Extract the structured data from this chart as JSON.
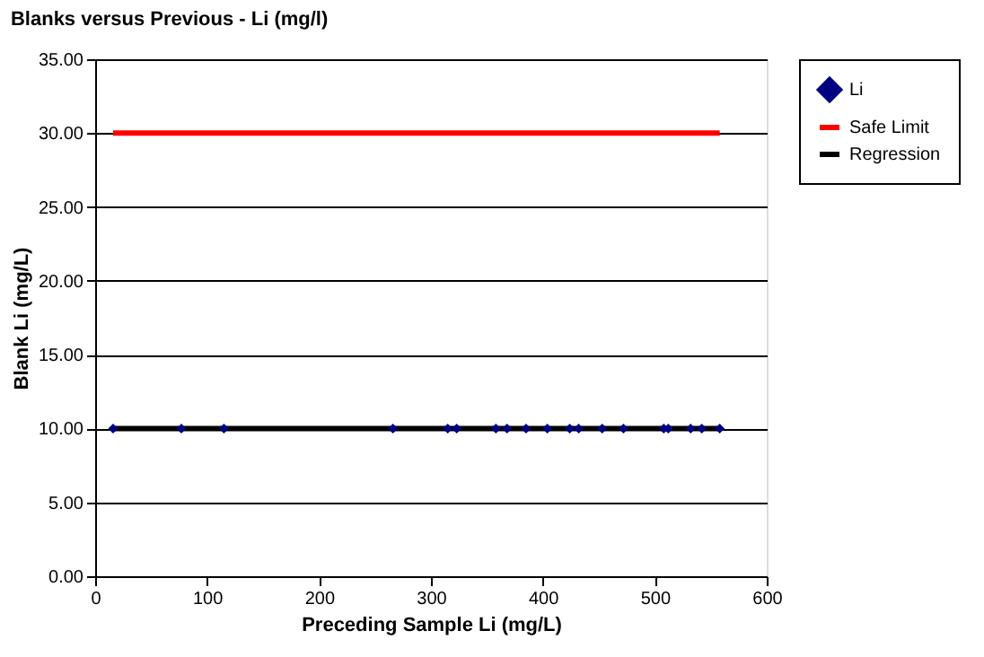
{
  "chart_data": {
    "type": "scatter",
    "title": "Blanks versus Previous - Li (mg/l)",
    "xlabel": "Preceding Sample Li (mg/L)",
    "ylabel": "Blank Li (mg/L)",
    "xlim": [
      0,
      600
    ],
    "xticks": [
      0,
      100,
      200,
      300,
      400,
      500,
      600
    ],
    "ylim": [
      0,
      35
    ],
    "yticks": [
      {
        "value": 0,
        "label": "0.00"
      },
      {
        "value": 5,
        "label": "5.00"
      },
      {
        "value": 10,
        "label": "10.00"
      },
      {
        "value": 15,
        "label": "15.00"
      },
      {
        "value": 20,
        "label": "20.00"
      },
      {
        "value": 25,
        "label": "25.00"
      },
      {
        "value": 30,
        "label": "30.00"
      },
      {
        "value": 35,
        "label": "35.00"
      }
    ],
    "grid": "y",
    "legend": "right",
    "series": [
      {
        "name": "Li",
        "marker": "diamond",
        "color": "#000080",
        "x": [
          16,
          77,
          115,
          266,
          315,
          323,
          358,
          368,
          385,
          404,
          424,
          432,
          453,
          472,
          508,
          512,
          532,
          542,
          558
        ],
        "values": [
          10,
          10,
          10,
          10,
          10,
          10,
          10,
          10,
          10,
          10,
          10,
          10,
          10,
          10,
          10,
          10,
          10,
          10,
          10
        ]
      },
      {
        "name": "Safe Limit",
        "type": "line",
        "color": "#ff0000",
        "x": [
          16,
          558
        ],
        "values": [
          30,
          30
        ]
      },
      {
        "name": "Regression",
        "type": "line",
        "color": "#000000",
        "x": [
          16,
          558
        ],
        "values": [
          10,
          10
        ]
      }
    ]
  }
}
